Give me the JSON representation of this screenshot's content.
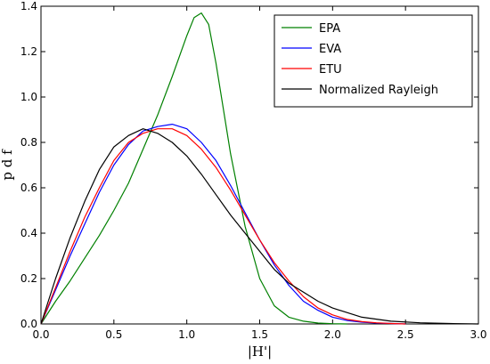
{
  "chart_data": {
    "type": "line",
    "xlabel": "|H'|",
    "ylabel": "p d f",
    "xlim": [
      0.0,
      3.0
    ],
    "ylim": [
      0.0,
      1.4
    ],
    "xticks": [
      0.0,
      0.5,
      1.0,
      1.5,
      2.0,
      2.5,
      3.0
    ],
    "xtick_labels": [
      "0.0",
      "0.5",
      "1.0",
      "1.5",
      "2.0",
      "2.5",
      "3.0"
    ],
    "yticks": [
      0.0,
      0.2,
      0.4,
      0.6,
      0.8,
      1.0,
      1.2,
      1.4
    ],
    "ytick_labels": [
      "0.0",
      "0.2",
      "0.4",
      "0.6",
      "0.8",
      "1.0",
      "1.2",
      "1.4"
    ],
    "grid": false,
    "legend_position": "top-right",
    "series": [
      {
        "name": "EPA",
        "color": "#008000",
        "x": [
          0.0,
          0.1,
          0.2,
          0.3,
          0.4,
          0.5,
          0.6,
          0.7,
          0.8,
          0.9,
          1.0,
          1.05,
          1.1,
          1.15,
          1.2,
          1.3,
          1.4,
          1.5,
          1.6,
          1.7,
          1.8,
          1.9,
          2.0,
          2.1
        ],
        "y": [
          0.0,
          0.1,
          0.19,
          0.29,
          0.39,
          0.5,
          0.62,
          0.77,
          0.92,
          1.09,
          1.27,
          1.35,
          1.37,
          1.32,
          1.15,
          0.75,
          0.43,
          0.2,
          0.08,
          0.03,
          0.012,
          0.004,
          0.001,
          0.0
        ]
      },
      {
        "name": "EVA",
        "color": "#0000ff",
        "x": [
          0.0,
          0.1,
          0.2,
          0.3,
          0.4,
          0.5,
          0.6,
          0.7,
          0.8,
          0.9,
          1.0,
          1.1,
          1.2,
          1.3,
          1.4,
          1.5,
          1.6,
          1.7,
          1.8,
          1.9,
          2.0,
          2.1,
          2.2,
          2.3,
          2.4,
          2.5
        ],
        "y": [
          0.0,
          0.15,
          0.3,
          0.44,
          0.58,
          0.7,
          0.79,
          0.85,
          0.87,
          0.88,
          0.86,
          0.8,
          0.72,
          0.61,
          0.49,
          0.37,
          0.26,
          0.17,
          0.1,
          0.06,
          0.03,
          0.015,
          0.008,
          0.004,
          0.002,
          0.0
        ]
      },
      {
        "name": "ETU",
        "color": "#ff0000",
        "x": [
          0.0,
          0.1,
          0.2,
          0.3,
          0.4,
          0.5,
          0.6,
          0.7,
          0.8,
          0.9,
          1.0,
          1.1,
          1.2,
          1.3,
          1.4,
          1.5,
          1.6,
          1.7,
          1.8,
          1.9,
          2.0,
          2.1,
          2.2,
          2.3,
          2.4,
          2.5
        ],
        "y": [
          0.0,
          0.16,
          0.32,
          0.47,
          0.6,
          0.72,
          0.8,
          0.84,
          0.86,
          0.86,
          0.83,
          0.77,
          0.69,
          0.59,
          0.48,
          0.37,
          0.27,
          0.19,
          0.12,
          0.07,
          0.04,
          0.02,
          0.01,
          0.005,
          0.002,
          0.0
        ]
      },
      {
        "name": "Normalized Rayleigh",
        "color": "#000000",
        "x": [
          0.0,
          0.1,
          0.2,
          0.3,
          0.4,
          0.5,
          0.6,
          0.7,
          0.8,
          0.9,
          1.0,
          1.1,
          1.2,
          1.3,
          1.4,
          1.5,
          1.6,
          1.7,
          1.8,
          1.9,
          2.0,
          2.2,
          2.4,
          2.6,
          2.8,
          3.0
        ],
        "y": [
          0.0,
          0.2,
          0.38,
          0.54,
          0.68,
          0.78,
          0.83,
          0.86,
          0.84,
          0.8,
          0.74,
          0.66,
          0.57,
          0.48,
          0.4,
          0.32,
          0.24,
          0.18,
          0.14,
          0.1,
          0.07,
          0.03,
          0.012,
          0.005,
          0.002,
          0.0
        ]
      }
    ]
  }
}
